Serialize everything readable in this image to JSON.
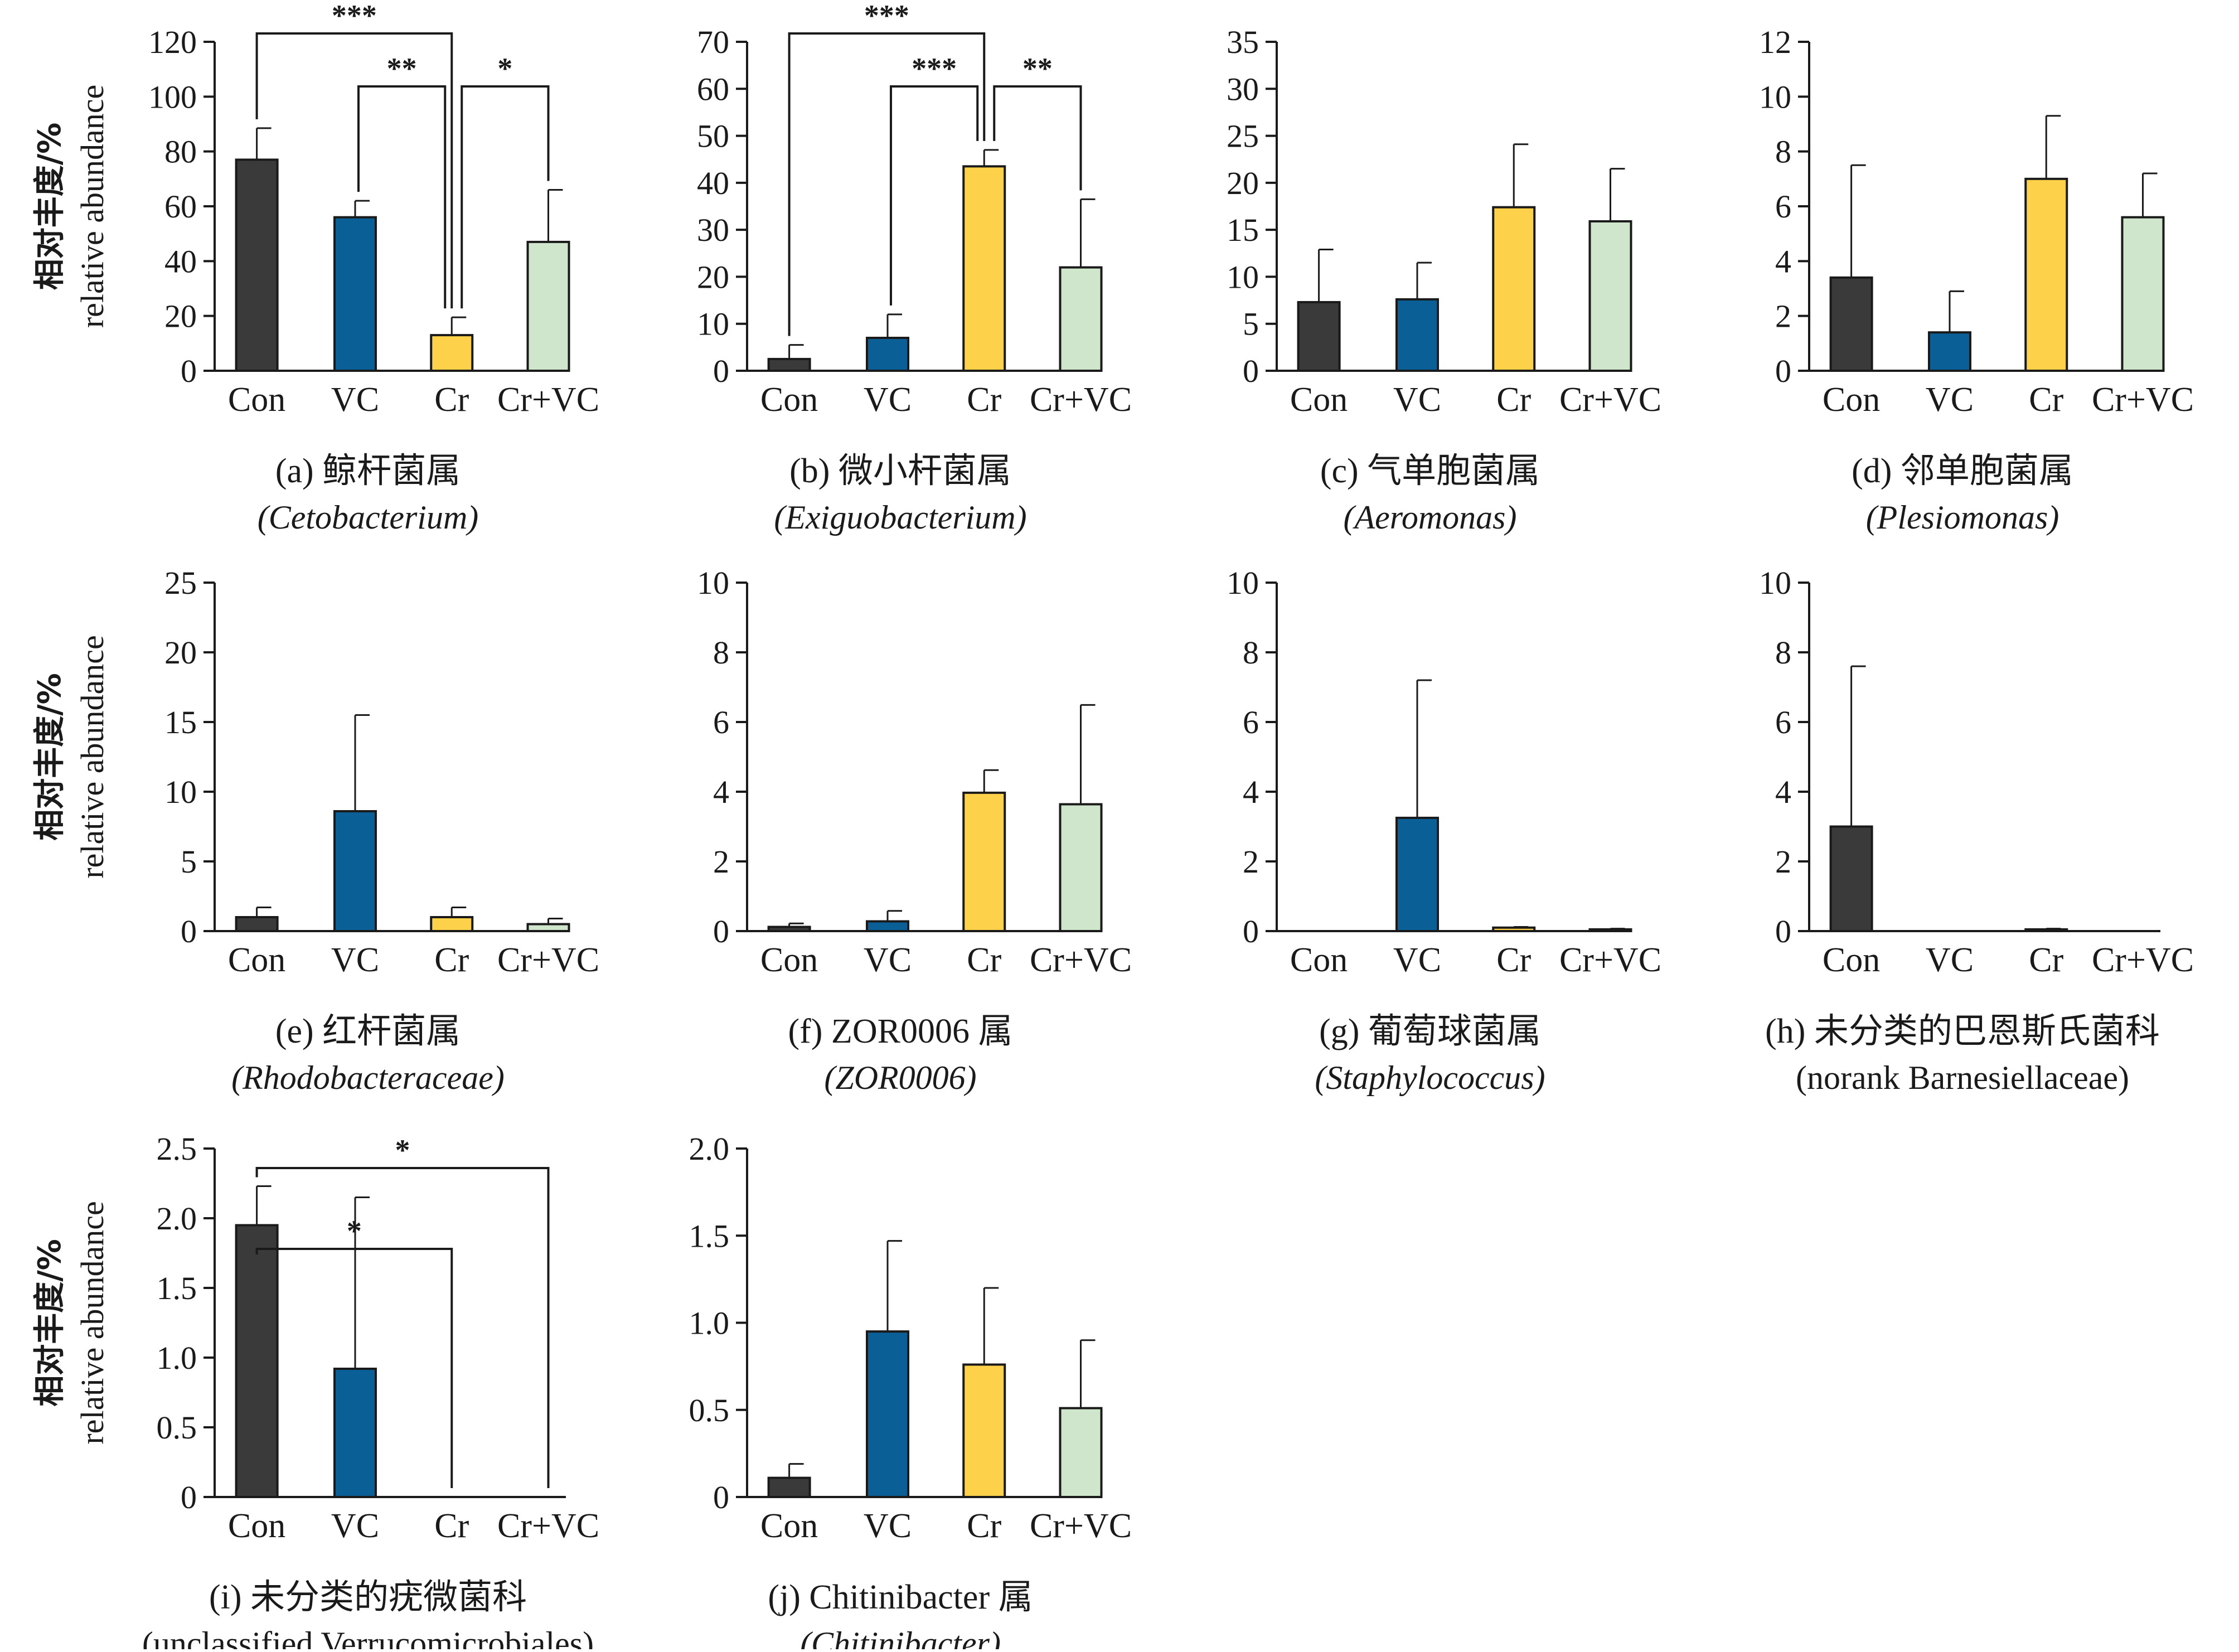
{
  "colors": {
    "Con": "#3a3a3a",
    "VC": "#0a5f96",
    "Cr": "#fdd14a",
    "Cr+VC": "#cfe6cd",
    "stroke": "#1a1a1a"
  },
  "ylabel": {
    "cn": "相对丰度/%",
    "en": "relative abundance"
  },
  "chart_data": [
    {
      "type": "bar",
      "panel": "a",
      "caption": "(a) 鲸杆菌属",
      "latin": "(Cetobacterium)",
      "latin_italic": true,
      "categories": [
        "Con",
        "VC",
        "Cr",
        "Cr+VC"
      ],
      "values": [
        77,
        56,
        13,
        47
      ],
      "errors": [
        11.5,
        6,
        6.5,
        19
      ],
      "ylim": [
        0,
        120
      ],
      "yticks": [
        0,
        20,
        40,
        60,
        80,
        100,
        120
      ],
      "significance": [
        {
          "from": 0,
          "to": 2,
          "label": "***",
          "level": 1
        },
        {
          "from": 1,
          "to": 2,
          "label": "**",
          "level": 0
        },
        {
          "from": 2,
          "to": 3,
          "label": "*",
          "level": 0
        }
      ]
    },
    {
      "type": "bar",
      "panel": "b",
      "caption": "(b) 微小杆菌属",
      "latin": "(Exiguobacterium)",
      "latin_italic": true,
      "categories": [
        "Con",
        "VC",
        "Cr",
        "Cr+VC"
      ],
      "values": [
        2.5,
        7,
        43.5,
        22
      ],
      "errors": [
        3,
        5,
        3.5,
        14.5
      ],
      "ylim": [
        0,
        70
      ],
      "yticks": [
        0,
        10,
        20,
        30,
        40,
        50,
        60,
        70
      ],
      "significance": [
        {
          "from": 0,
          "to": 2,
          "label": "***",
          "level": 1
        },
        {
          "from": 1,
          "to": 2,
          "label": "***",
          "level": 0
        },
        {
          "from": 2,
          "to": 3,
          "label": "**",
          "level": 0
        }
      ]
    },
    {
      "type": "bar",
      "panel": "c",
      "caption": "(c) 气单胞菌属",
      "latin": "(Aeromonas)",
      "latin_italic": true,
      "categories": [
        "Con",
        "VC",
        "Cr",
        "Cr+VC"
      ],
      "values": [
        7.3,
        7.6,
        17.4,
        15.9
      ],
      "errors": [
        5.6,
        3.9,
        6.7,
        5.6
      ],
      "ylim": [
        0,
        35
      ],
      "yticks": [
        0,
        5,
        10,
        15,
        20,
        25,
        30,
        35
      ],
      "significance": []
    },
    {
      "type": "bar",
      "panel": "d",
      "caption": "(d) 邻单胞菌属",
      "latin": "(Plesiomonas)",
      "latin_italic": true,
      "categories": [
        "Con",
        "VC",
        "Cr",
        "Cr+VC"
      ],
      "values": [
        3.4,
        1.4,
        7.0,
        5.6
      ],
      "errors": [
        4.1,
        1.5,
        2.3,
        1.6
      ],
      "ylim": [
        0,
        12
      ],
      "yticks": [
        0,
        2,
        4,
        6,
        8,
        10,
        12
      ],
      "significance": []
    },
    {
      "type": "bar",
      "panel": "e",
      "caption": "(e) 红杆菌属",
      "latin": "(Rhodobacteraceae)",
      "latin_italic": true,
      "categories": [
        "Con",
        "VC",
        "Cr",
        "Cr+VC"
      ],
      "values": [
        1.0,
        8.6,
        1.0,
        0.5
      ],
      "errors": [
        0.7,
        6.9,
        0.7,
        0.4
      ],
      "ylim": [
        0,
        25
      ],
      "yticks": [
        0,
        5,
        10,
        15,
        20,
        25
      ],
      "significance": []
    },
    {
      "type": "bar",
      "panel": "f",
      "caption": "(f) ZOR0006 属",
      "latin": "(ZOR0006)",
      "latin_italic": true,
      "categories": [
        "Con",
        "VC",
        "Cr",
        "Cr+VC"
      ],
      "values": [
        0.12,
        0.28,
        3.97,
        3.64
      ],
      "errors": [
        0.1,
        0.3,
        0.65,
        2.85
      ],
      "ylim": [
        0,
        10
      ],
      "yticks": [
        0,
        2,
        4,
        6,
        8,
        10
      ],
      "significance": []
    },
    {
      "type": "bar",
      "panel": "g",
      "caption": "(g) 葡萄球菌属",
      "latin": "(Staphylococcus)",
      "latin_italic": true,
      "categories": [
        "Con",
        "VC",
        "Cr",
        "Cr+VC"
      ],
      "values": [
        0,
        3.25,
        0.1,
        0.05
      ],
      "errors": [
        0,
        3.95,
        0.02,
        0.02
      ],
      "ylim": [
        0,
        10
      ],
      "yticks": [
        0,
        2,
        4,
        6,
        8,
        10
      ],
      "significance": []
    },
    {
      "type": "bar",
      "panel": "h",
      "caption": "(h) 未分类的巴恩斯氏菌科",
      "latin": "(norank Barnesiellaceae)",
      "latin_italic": false,
      "categories": [
        "Con",
        "VC",
        "Cr",
        "Cr+VC"
      ],
      "values": [
        3.0,
        0,
        0.05,
        0
      ],
      "errors": [
        4.6,
        0,
        0.02,
        0
      ],
      "ylim": [
        0,
        10
      ],
      "yticks": [
        0,
        2,
        4,
        6,
        8,
        10
      ],
      "significance": []
    },
    {
      "type": "bar",
      "panel": "i",
      "caption": "(i) 未分类的疣微菌科",
      "latin": "(unclassified Verrucomicrobiales)",
      "latin_italic": false,
      "categories": [
        "Con",
        "VC",
        "Cr",
        "Cr+VC"
      ],
      "values": [
        1.95,
        0.92,
        0,
        0
      ],
      "errors": [
        0.28,
        1.23,
        0,
        0
      ],
      "ylim": [
        0,
        2.5
      ],
      "yticks": [
        "0",
        "0.5",
        "1.0",
        "1.5",
        "2.0",
        "2.5"
      ],
      "significance": [
        {
          "from": 0,
          "to": 2,
          "label": "*",
          "level": 0
        },
        {
          "from": 0,
          "to": 3,
          "label": "*",
          "level": 1
        }
      ]
    },
    {
      "type": "bar",
      "panel": "j",
      "caption": "(j) Chitinibacter 属",
      "latin": "(Chitinibacter)",
      "latin_italic": true,
      "categories": [
        "Con",
        "VC",
        "Cr",
        "Cr+VC"
      ],
      "values": [
        0.11,
        0.95,
        0.76,
        0.51
      ],
      "errors": [
        0.08,
        0.52,
        0.44,
        0.39
      ],
      "ylim": [
        0,
        2.0
      ],
      "yticks": [
        "0",
        "0.5",
        "1.0",
        "1.5",
        "2.0"
      ],
      "significance": []
    }
  ]
}
